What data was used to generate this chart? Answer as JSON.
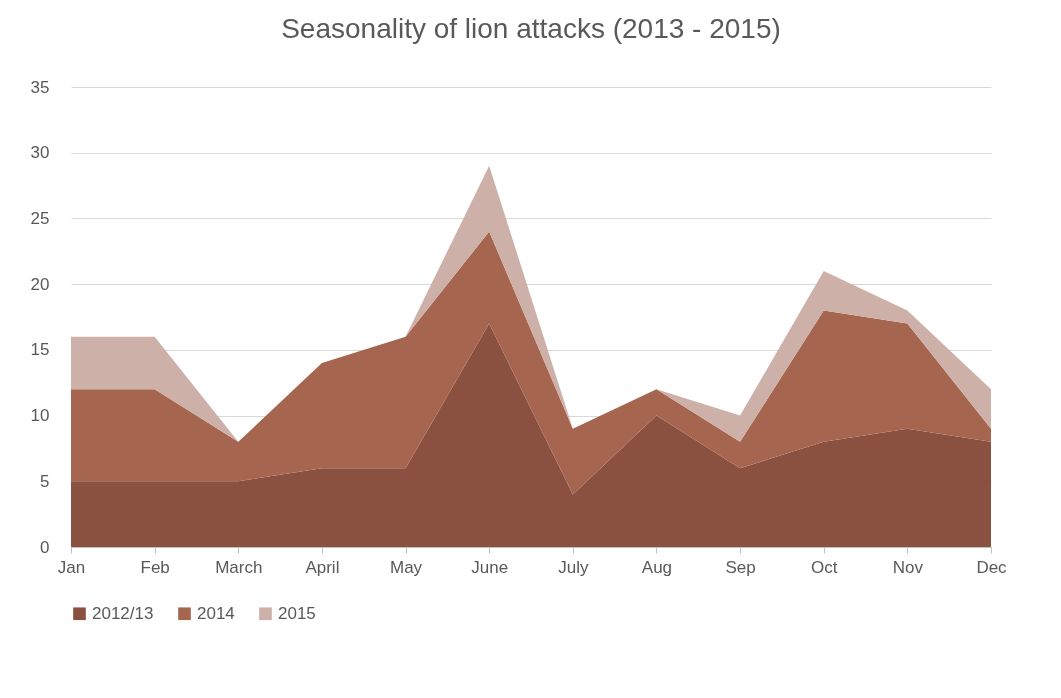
{
  "chart_data": {
    "type": "area",
    "title": "Seasonality of lion attacks (2013 - 2015)",
    "stacked": true,
    "categories": [
      "Jan",
      "Feb",
      "March",
      "April",
      "May",
      "June",
      "July",
      "Aug",
      "Sep",
      "Oct",
      "Nov",
      "Dec"
    ],
    "series": [
      {
        "name": "2012/13",
        "color": "#8b5140",
        "values": [
          5,
          5,
          5,
          6,
          6,
          17,
          4,
          10,
          6,
          8,
          9,
          8
        ]
      },
      {
        "name": "2014",
        "color": "#a6654e",
        "values": [
          7,
          7,
          3,
          8,
          10,
          7,
          5,
          2,
          2,
          10,
          8,
          1
        ]
      },
      {
        "name": "2015",
        "color": "#cdb0a8",
        "values": [
          4,
          4,
          0,
          0,
          0,
          5,
          0,
          0,
          2,
          3,
          1,
          3
        ]
      }
    ],
    "ylim": [
      0,
      35
    ],
    "yticks": [
      0,
      5,
      10,
      15,
      20,
      25,
      30,
      35
    ],
    "grid": "y",
    "legend": "bottom"
  }
}
